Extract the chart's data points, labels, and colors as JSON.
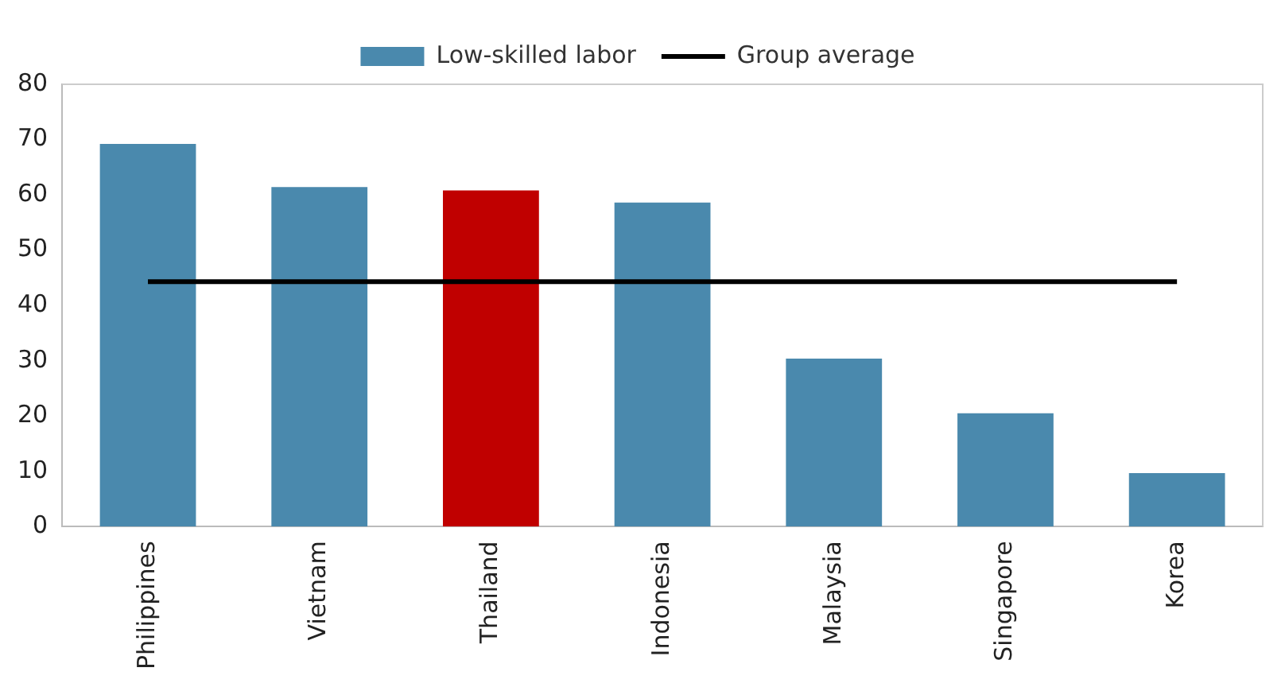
{
  "chart_data": {
    "type": "bar",
    "categories": [
      "Philippines",
      "Vietnam",
      "Thailand",
      "Indonesia",
      "Malaysia",
      "Singapore",
      "Korea"
    ],
    "series": [
      {
        "name": "Low-skilled labor",
        "colors": [
          "#4a89ad",
          "#4a89ad",
          "#c00000",
          "#4a89ad",
          "#4a89ad",
          "#4a89ad",
          "#4a89ad"
        ],
        "values": [
          69.2,
          61.4,
          60.8,
          58.6,
          30.4,
          20.5,
          9.7
        ]
      },
      {
        "name": "Group average",
        "type": "line",
        "color": "#000000",
        "marker": "none",
        "values": [
          44.3,
          44.3,
          44.3,
          44.3,
          44.3,
          44.3,
          44.3
        ]
      }
    ],
    "ylim": [
      0,
      80
    ],
    "yticks": [
      0,
      10,
      20,
      30,
      40,
      50,
      60,
      70,
      80
    ],
    "grid": false,
    "legend": "top"
  }
}
